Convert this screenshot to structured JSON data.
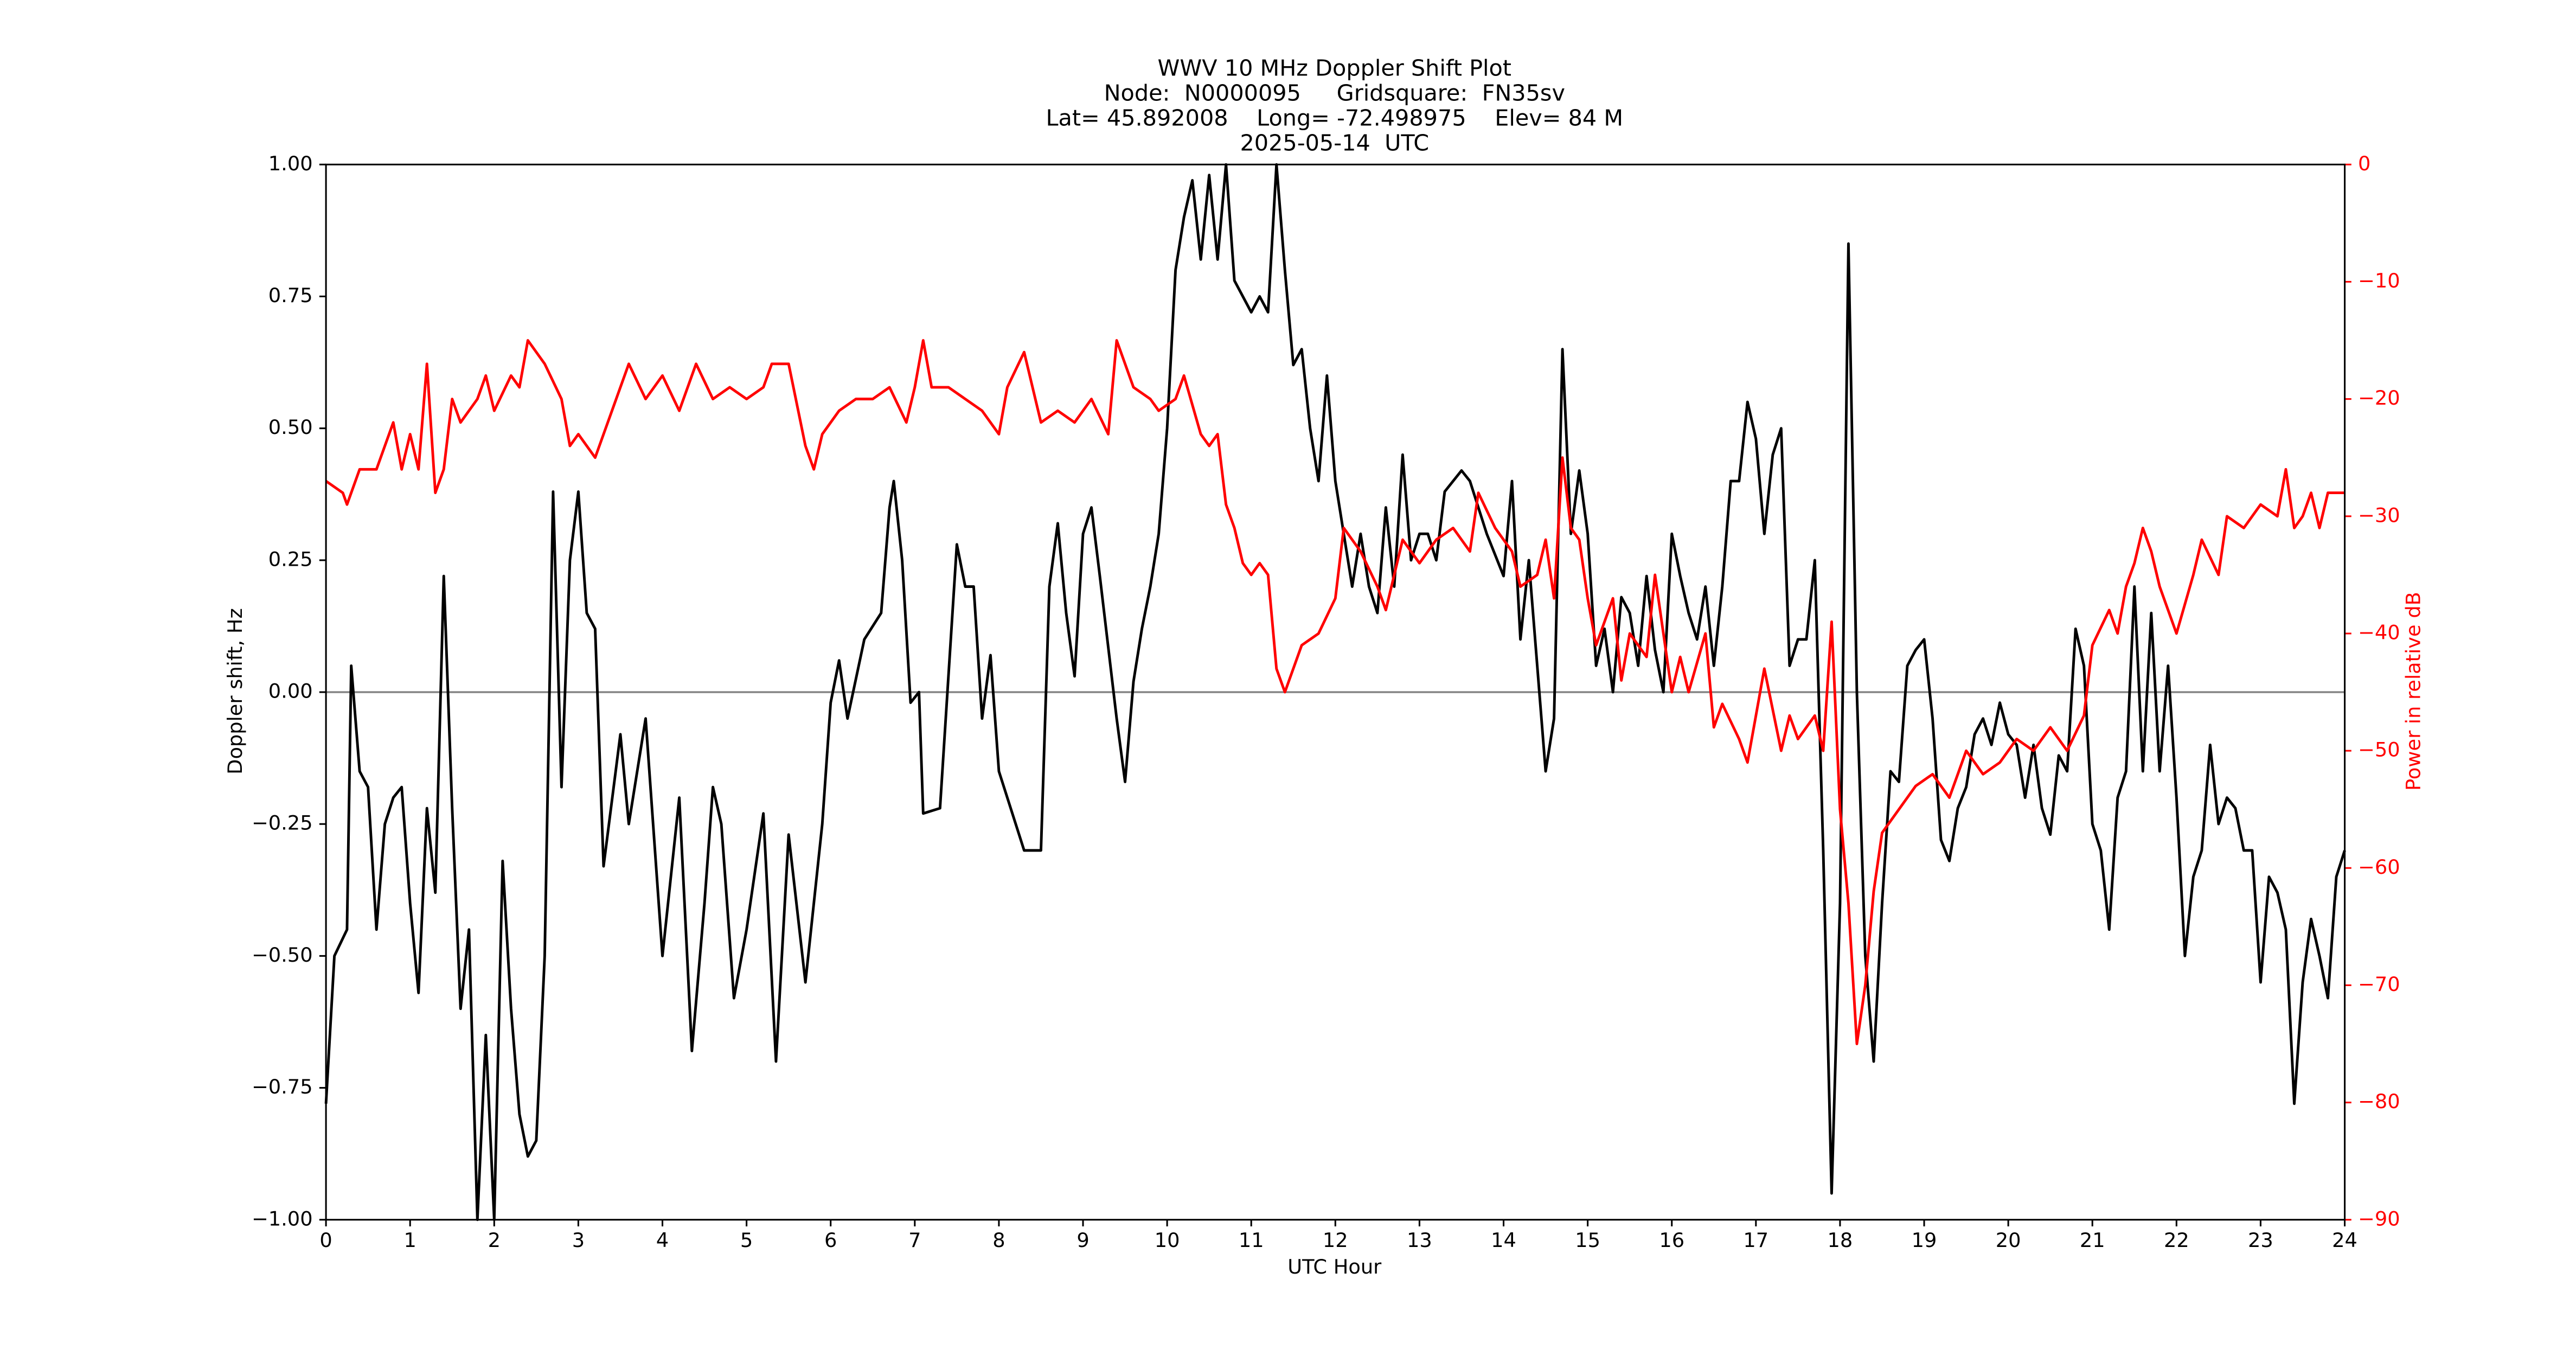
{
  "chart_data": {
    "type": "line",
    "title": [
      "WWV 10 MHz Doppler Shift Plot",
      "Node:  N0000095     Gridsquare:  FN35sv",
      "Lat= 45.892008    Long= -72.498975    Elev= 84 M",
      "2025-05-14  UTC"
    ],
    "xlabel": "UTC Hour",
    "ylabel": "Doppler shift, Hz",
    "y2label": "Power in relative dB",
    "xlim": [
      0,
      24
    ],
    "xticks": [
      0,
      1,
      2,
      3,
      4,
      5,
      6,
      7,
      8,
      9,
      10,
      11,
      12,
      13,
      14,
      15,
      16,
      17,
      18,
      19,
      20,
      21,
      22,
      23,
      24
    ],
    "ylim": [
      -1,
      1
    ],
    "yticks": [
      {
        "value": -1,
        "label": "−1.00"
      },
      {
        "value": -0.75,
        "label": "−0.75"
      },
      {
        "value": -0.5,
        "label": "−0.50"
      },
      {
        "value": -0.25,
        "label": "−0.25"
      },
      {
        "value": 0,
        "label": "0.00"
      },
      {
        "value": 0.25,
        "label": "0.25"
      },
      {
        "value": 0.5,
        "label": "0.50"
      },
      {
        "value": 0.75,
        "label": "0.75"
      },
      {
        "value": 1,
        "label": "1.00"
      }
    ],
    "y2lim": [
      -90,
      0
    ],
    "y2ticks": [
      {
        "value": -90,
        "label": "−90"
      },
      {
        "value": -80,
        "label": "−80"
      },
      {
        "value": -70,
        "label": "−70"
      },
      {
        "value": -60,
        "label": "−60"
      },
      {
        "value": -50,
        "label": "−50"
      },
      {
        "value": -40,
        "label": "−40"
      },
      {
        "value": -30,
        "label": "−30"
      },
      {
        "value": -20,
        "label": "−20"
      },
      {
        "value": -10,
        "label": "−10"
      },
      0
    ],
    "reference_line": 0,
    "series": [
      {
        "color": "#000000",
        "axis": "y",
        "x": [
          0,
          0.1,
          0.25,
          0.3,
          0.4,
          0.5,
          0.6,
          0.7,
          0.8,
          0.9,
          1.0,
          1.1,
          1.2,
          1.3,
          1.4,
          1.5,
          1.6,
          1.7,
          1.8,
          1.9,
          2.0,
          2.1,
          2.2,
          2.3,
          2.4,
          2.5,
          2.6,
          2.7,
          2.8,
          2.9,
          3.0,
          3.1,
          3.2,
          3.3,
          3.5,
          3.6,
          3.8,
          4.0,
          4.2,
          4.35,
          4.5,
          4.6,
          4.7,
          4.85,
          5.0,
          5.2,
          5.35,
          5.5,
          5.7,
          5.9,
          6.0,
          6.1,
          6.2,
          6.4,
          6.6,
          6.7,
          6.75,
          6.85,
          6.95,
          7.05,
          7.1,
          7.3,
          7.5,
          7.6,
          7.7,
          7.8,
          7.9,
          8.0,
          8.2,
          8.3,
          8.5,
          8.6,
          8.7,
          8.8,
          8.9,
          9.0,
          9.1,
          9.2,
          9.4,
          9.5,
          9.6,
          9.7,
          9.8,
          9.9,
          10.0,
          10.1,
          10.2,
          10.3,
          10.4,
          10.5,
          10.6,
          10.7,
          10.8,
          11.0,
          11.1,
          11.2,
          11.3,
          11.4,
          11.5,
          11.6,
          11.7,
          11.8,
          11.9,
          12.0,
          12.1,
          12.2,
          12.3,
          12.4,
          12.5,
          12.6,
          12.7,
          12.8,
          12.9,
          13.0,
          13.1,
          13.2,
          13.3,
          13.5,
          13.6,
          13.8,
          14.0,
          14.1,
          14.2,
          14.3,
          14.4,
          14.5,
          14.6,
          14.7,
          14.8,
          14.9,
          15.0,
          15.1,
          15.2,
          15.3,
          15.4,
          15.5,
          15.6,
          15.7,
          15.8,
          15.9,
          16.0,
          16.1,
          16.2,
          16.3,
          16.4,
          16.5,
          16.6,
          16.7,
          16.8,
          16.9,
          17.0,
          17.1,
          17.2,
          17.3,
          17.4,
          17.5,
          17.6,
          17.7,
          17.8,
          17.9,
          18.0,
          18.1,
          18.2,
          18.3,
          18.4,
          18.5,
          18.6,
          18.7,
          18.8,
          18.9,
          19.0,
          19.1,
          19.2,
          19.3,
          19.4,
          19.5,
          19.6,
          19.7,
          19.8,
          19.9,
          20.0,
          20.1,
          20.2,
          20.3,
          20.4,
          20.5,
          20.6,
          20.7,
          20.8,
          20.9,
          21.0,
          21.1,
          21.2,
          21.3,
          21.4,
          21.5,
          21.6,
          21.7,
          21.8,
          21.9,
          22.0,
          22.1,
          22.2,
          22.3,
          22.4,
          22.5,
          22.6,
          22.7,
          22.8,
          22.9,
          23.0,
          23.1,
          23.2,
          23.3,
          23.4,
          23.5,
          23.6,
          23.7,
          23.8,
          23.9,
          24.0
        ],
        "values": [
          -0.78,
          -0.5,
          -0.45,
          0.05,
          -0.15,
          -0.18,
          -0.45,
          -0.25,
          -0.2,
          -0.18,
          -0.4,
          -0.57,
          -0.22,
          -0.38,
          0.22,
          -0.22,
          -0.6,
          -0.45,
          -1.0,
          -0.65,
          -1.0,
          -0.32,
          -0.6,
          -0.8,
          -0.88,
          -0.85,
          -0.5,
          0.38,
          -0.18,
          0.25,
          0.38,
          0.15,
          0.12,
          -0.33,
          -0.08,
          -0.25,
          -0.05,
          -0.5,
          -0.2,
          -0.68,
          -0.4,
          -0.18,
          -0.25,
          -0.58,
          -0.45,
          -0.23,
          -0.7,
          -0.27,
          -0.55,
          -0.25,
          -0.02,
          0.06,
          -0.05,
          0.1,
          0.15,
          0.35,
          0.4,
          0.25,
          -0.02,
          0.0,
          -0.23,
          -0.22,
          0.28,
          0.2,
          0.2,
          -0.05,
          0.07,
          -0.15,
          -0.25,
          -0.3,
          -0.3,
          0.2,
          0.32,
          0.15,
          0.03,
          0.3,
          0.35,
          0.22,
          -0.05,
          -0.17,
          0.02,
          0.12,
          0.2,
          0.3,
          0.5,
          0.8,
          0.9,
          0.97,
          0.82,
          0.98,
          0.82,
          1.0,
          0.78,
          0.72,
          0.75,
          0.72,
          1.0,
          0.8,
          0.62,
          0.65,
          0.5,
          0.4,
          0.6,
          0.4,
          0.3,
          0.2,
          0.3,
          0.2,
          0.15,
          0.35,
          0.2,
          0.45,
          0.25,
          0.3,
          0.3,
          0.25,
          0.38,
          0.42,
          0.4,
          0.3,
          0.22,
          0.4,
          0.1,
          0.25,
          0.05,
          -0.15,
          -0.05,
          0.65,
          0.3,
          0.42,
          0.3,
          0.05,
          0.12,
          0.0,
          0.18,
          0.15,
          0.05,
          0.22,
          0.08,
          0.0,
          0.3,
          0.22,
          0.15,
          0.1,
          0.2,
          0.05,
          0.2,
          0.4,
          0.4,
          0.55,
          0.48,
          0.3,
          0.45,
          0.5,
          0.05,
          0.1,
          0.1,
          0.25,
          -0.3,
          -0.95,
          -0.4,
          0.85,
          0.0,
          -0.5,
          -0.7,
          -0.4,
          -0.15,
          -0.17,
          0.05,
          0.08,
          0.1,
          -0.05,
          -0.28,
          -0.32,
          -0.22,
          -0.18,
          -0.08,
          -0.05,
          -0.1,
          -0.02,
          -0.08,
          -0.1,
          -0.2,
          -0.1,
          -0.22,
          -0.27,
          -0.12,
          -0.15,
          0.12,
          0.05,
          -0.25,
          -0.3,
          -0.45,
          -0.2,
          -0.15,
          0.2,
          -0.15,
          0.15,
          -0.15,
          0.05,
          -0.2,
          -0.5,
          -0.35,
          -0.3,
          -0.1,
          -0.25,
          -0.2,
          -0.22,
          -0.3,
          -0.3,
          -0.55,
          -0.35,
          -0.38,
          -0.45,
          -0.78,
          -0.55,
          -0.43,
          -0.5,
          -0.58,
          -0.35,
          -0.3
        ]
      },
      {
        "color": "#ff0000",
        "axis": "y2",
        "x": [
          0,
          0.2,
          0.25,
          0.4,
          0.6,
          0.8,
          0.9,
          1.0,
          1.1,
          1.2,
          1.3,
          1.4,
          1.5,
          1.6,
          1.8,
          1.9,
          2.0,
          2.2,
          2.3,
          2.4,
          2.6,
          2.8,
          2.9,
          3.0,
          3.2,
          3.4,
          3.6,
          3.8,
          4.0,
          4.2,
          4.4,
          4.6,
          4.8,
          5.0,
          5.2,
          5.3,
          5.5,
          5.7,
          5.8,
          5.9,
          6.1,
          6.3,
          6.5,
          6.7,
          6.9,
          7.0,
          7.1,
          7.2,
          7.4,
          7.6,
          7.8,
          8.0,
          8.1,
          8.3,
          8.5,
          8.7,
          8.9,
          9.1,
          9.3,
          9.4,
          9.6,
          9.8,
          9.9,
          10.1,
          10.2,
          10.4,
          10.5,
          10.6,
          10.7,
          10.8,
          10.9,
          11.0,
          11.1,
          11.2,
          11.3,
          11.4,
          11.6,
          11.8,
          12.0,
          12.1,
          12.3,
          12.5,
          12.6,
          12.8,
          13.0,
          13.2,
          13.4,
          13.6,
          13.7,
          13.9,
          14.1,
          14.2,
          14.4,
          14.5,
          14.6,
          14.7,
          14.8,
          14.9,
          15.0,
          15.1,
          15.3,
          15.4,
          15.5,
          15.7,
          15.8,
          15.9,
          16.0,
          16.1,
          16.2,
          16.4,
          16.5,
          16.6,
          16.8,
          16.9,
          17.0,
          17.1,
          17.3,
          17.4,
          17.5,
          17.7,
          17.8,
          17.9,
          18.0,
          18.1,
          18.2,
          18.3,
          18.4,
          18.5,
          18.7,
          18.9,
          19.1,
          19.3,
          19.5,
          19.7,
          19.9,
          20.1,
          20.3,
          20.5,
          20.7,
          20.9,
          21.0,
          21.2,
          21.3,
          21.4,
          21.5,
          21.6,
          21.7,
          21.8,
          22.0,
          22.2,
          22.3,
          22.5,
          22.6,
          22.8,
          23.0,
          23.2,
          23.3,
          23.4,
          23.5,
          23.6,
          23.7,
          23.8,
          24.0
        ],
        "values": [
          -27,
          -28,
          -29,
          -26,
          -26,
          -22,
          -26,
          -23,
          -26,
          -17,
          -28,
          -26,
          -20,
          -22,
          -20,
          -18,
          -21,
          -18,
          -19,
          -15,
          -17,
          -20,
          -24,
          -23,
          -25,
          -21,
          -17,
          -20,
          -18,
          -21,
          -17,
          -20,
          -19,
          -20,
          -19,
          -17,
          -17,
          -24,
          -26,
          -23,
          -21,
          -20,
          -20,
          -19,
          -22,
          -19,
          -15,
          -19,
          -19,
          -20,
          -21,
          -23,
          -19,
          -16,
          -22,
          -21,
          -22,
          -20,
          -23,
          -15,
          -19,
          -20,
          -21,
          -20,
          -18,
          -23,
          -24,
          -23,
          -29,
          -31,
          -34,
          -35,
          -34,
          -35,
          -43,
          -45,
          -41,
          -40,
          -37,
          -31,
          -33,
          -36,
          -38,
          -32,
          -34,
          -32,
          -31,
          -33,
          -28,
          -31,
          -33,
          -36,
          -35,
          -32,
          -37,
          -25,
          -31,
          -32,
          -37,
          -41,
          -37,
          -44,
          -40,
          -42,
          -35,
          -40,
          -45,
          -42,
          -45,
          -40,
          -48,
          -46,
          -49,
          -51,
          -47,
          -43,
          -50,
          -47,
          -49,
          -47,
          -50,
          -39,
          -55,
          -63,
          -75,
          -70,
          -62,
          -57,
          -55,
          -53,
          -52,
          -54,
          -50,
          -52,
          -51,
          -49,
          -50,
          -48,
          -50,
          -47,
          -41,
          -38,
          -40,
          -36,
          -34,
          -31,
          -33,
          -36,
          -40,
          -35,
          -32,
          -35,
          -30,
          -31,
          -29,
          -30,
          -26,
          -31,
          -30,
          -28,
          -31,
          -28,
          -28
        ]
      }
    ]
  }
}
